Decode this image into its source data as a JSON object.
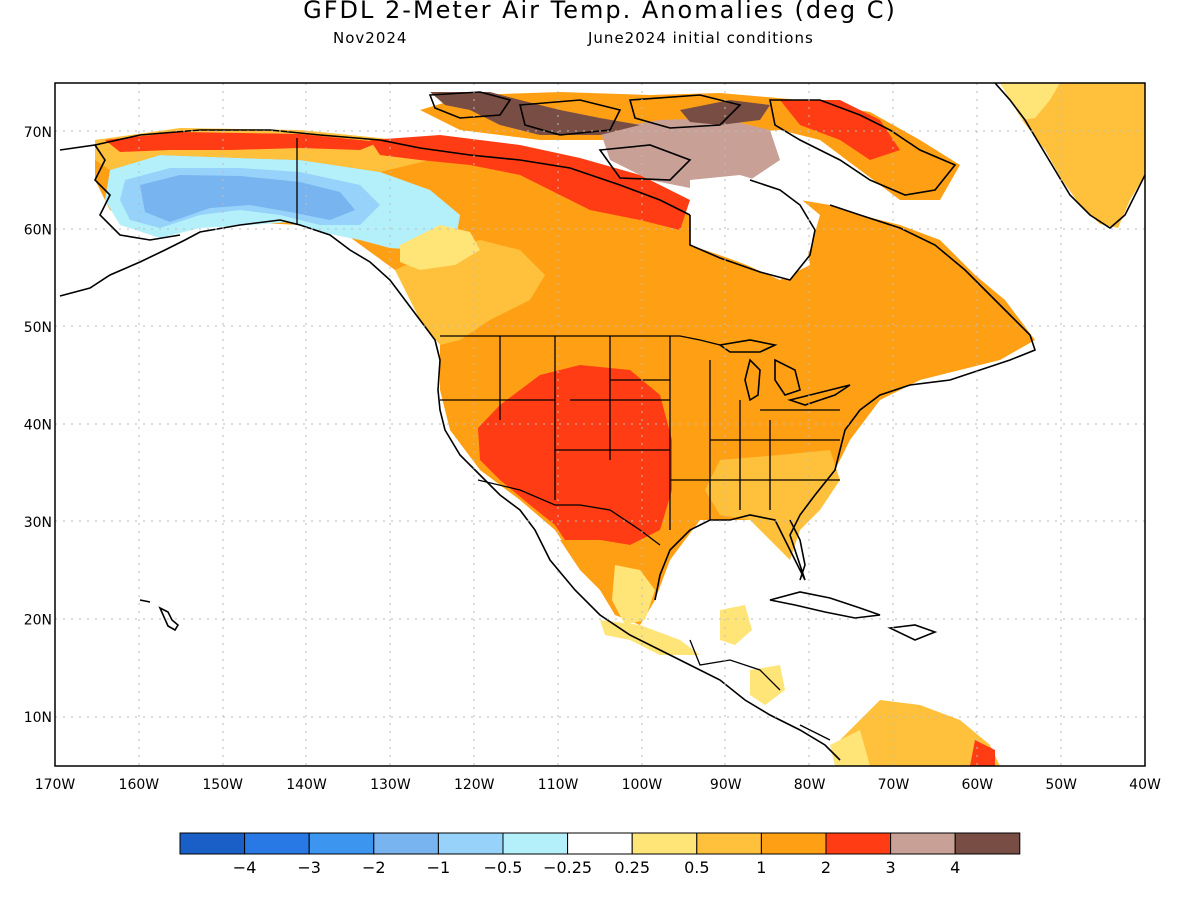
{
  "header": {
    "title": "GFDL 2-Meter Air Temp. Anomalies (deg C)",
    "valid_month": "Nov2024",
    "init_conditions": "June2024 initial conditions"
  },
  "axes": {
    "lat_labels": [
      "70N",
      "60N",
      "50N",
      "40N",
      "30N",
      "20N",
      "10N"
    ],
    "lon_labels": [
      "170W",
      "160W",
      "150W",
      "140W",
      "130W",
      "120W",
      "110W",
      "100W",
      "90W",
      "80W",
      "70W",
      "60W",
      "50W",
      "40W"
    ],
    "lat_range": [
      5,
      75
    ],
    "lon_range": [
      -170,
      -40
    ],
    "grid": "dotted"
  },
  "colorbar": {
    "bins": [
      {
        "color": "#1a5fc8"
      },
      {
        "color": "#2878e6"
      },
      {
        "color": "#3c96f0"
      },
      {
        "color": "#78b4f0"
      },
      {
        "color": "#96d2fa"
      },
      {
        "color": "#b4f0fa"
      },
      {
        "color": "#ffffff"
      },
      {
        "color": "#ffe478"
      },
      {
        "color": "#ffc03c"
      },
      {
        "color": "#ffa014"
      },
      {
        "color": "#ff3c14"
      },
      {
        "color": "#c8a096"
      },
      {
        "color": "#784e44"
      }
    ],
    "tick_labels": [
      "-4",
      "-3",
      "-2",
      "-1",
      "-0.5",
      "-0.25",
      "0.25",
      "0.5",
      "1",
      "2",
      "3",
      "4"
    ]
  },
  "regions": [
    {
      "name": "canada-us-warm",
      "color": "#ffa014"
    },
    {
      "name": "southwest-hot",
      "color": "#ff3c14"
    },
    {
      "name": "southeast-moderate",
      "color": "#ffc03c"
    },
    {
      "name": "alaska-cold",
      "color": "#78b4f0"
    },
    {
      "name": "arctic-very-warm",
      "color": "#784e44"
    },
    {
      "name": "greenland-warm",
      "color": "#ffc03c"
    }
  ]
}
